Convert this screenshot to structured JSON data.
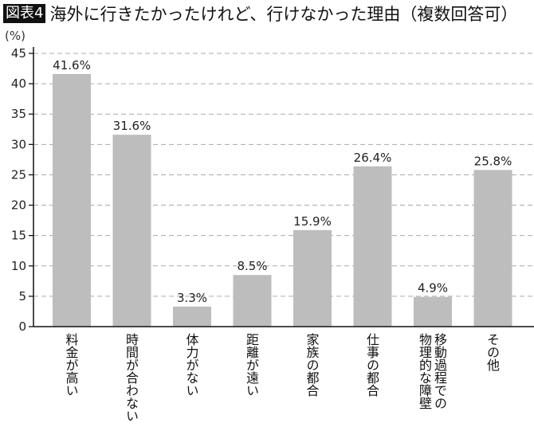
{
  "header": {
    "badge": "図表4",
    "title": "海外に行きたかったけれど、行けなかった理由（複数回答可）"
  },
  "chart_data": {
    "type": "bar",
    "title": "海外に行きたかったけれど、行けなかった理由（複数回答可）",
    "ylabel": "(%)",
    "xlabel": "",
    "ylim": [
      0,
      45
    ],
    "yticks": [
      0,
      5,
      10,
      15,
      20,
      25,
      30,
      35,
      40,
      45
    ],
    "grid": "horizontal dashed",
    "bar_color": "#bdbdbd",
    "categories": [
      "料金が高い",
      "時間が合わない",
      "体力がない",
      "距離が遠い",
      "家族の都合",
      "仕事の都合",
      "移動過程での\n物理的な障壁",
      "その他"
    ],
    "values": [
      41.6,
      31.6,
      3.3,
      8.5,
      15.9,
      26.4,
      4.9,
      25.8
    ],
    "data_labels": [
      "41.6%",
      "31.6%",
      "3.3%",
      "8.5%",
      "15.9%",
      "26.4%",
      "4.9%",
      "25.8%"
    ]
  }
}
